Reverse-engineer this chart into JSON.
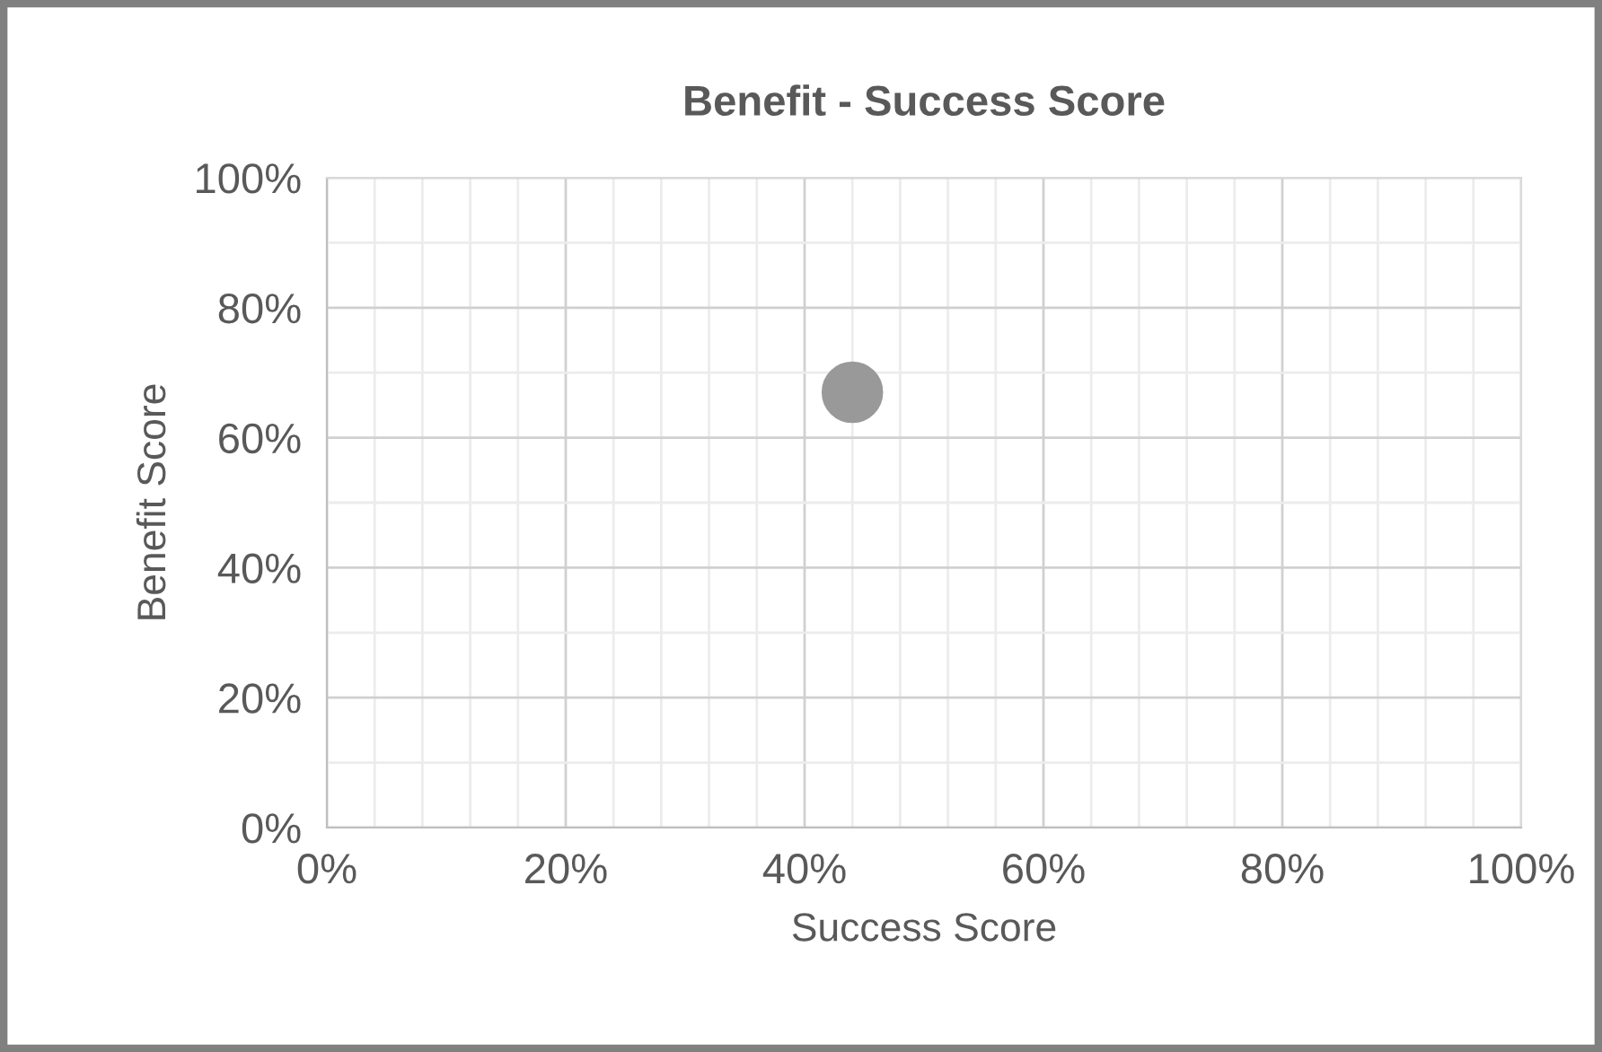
{
  "chart_data": {
    "type": "scatter",
    "title": "Benefit - Success Score",
    "xlabel": "Success Score",
    "ylabel": "Benefit Score",
    "x": [
      44
    ],
    "series": [
      {
        "color": "#999999",
        "values": [
          67
        ]
      }
    ],
    "marker": "circle",
    "grid": true,
    "xlim": [
      0,
      100
    ],
    "ylim": [
      0,
      100
    ],
    "xticks": [
      {
        "value": 0,
        "label": "0%"
      },
      {
        "value": 4,
        "label": null
      },
      {
        "value": 8,
        "label": null
      },
      {
        "value": 12,
        "label": null
      },
      {
        "value": 16,
        "label": null
      },
      {
        "value": 20,
        "label": "20%"
      },
      {
        "value": 24,
        "label": null
      },
      {
        "value": 28,
        "label": null
      },
      {
        "value": 32,
        "label": null
      },
      {
        "value": 36,
        "label": null
      },
      {
        "value": 40,
        "label": "40%"
      },
      {
        "value": 44,
        "label": null
      },
      {
        "value": 48,
        "label": null
      },
      {
        "value": 52,
        "label": null
      },
      {
        "value": 56,
        "label": null
      },
      {
        "value": 60,
        "label": "60%"
      },
      {
        "value": 64,
        "label": null
      },
      {
        "value": 68,
        "label": null
      },
      {
        "value": 72,
        "label": null
      },
      {
        "value": 76,
        "label": null
      },
      {
        "value": 80,
        "label": "80%"
      },
      {
        "value": 84,
        "label": null
      },
      {
        "value": 88,
        "label": null
      },
      {
        "value": 92,
        "label": null
      },
      {
        "value": 96,
        "label": null
      },
      {
        "value": 100,
        "label": "100%"
      }
    ],
    "yticks": [
      {
        "value": 0,
        "label": "0%"
      },
      {
        "value": 10,
        "label": null
      },
      {
        "value": 20,
        "label": "20%"
      },
      {
        "value": 30,
        "label": null
      },
      {
        "value": 40,
        "label": "40%"
      },
      {
        "value": 50,
        "label": null
      },
      {
        "value": 60,
        "label": "60%"
      },
      {
        "value": 70,
        "label": null
      },
      {
        "value": 80,
        "label": "80%"
      },
      {
        "value": 90,
        "label": null
      },
      {
        "value": 100,
        "label": "100%"
      }
    ]
  }
}
